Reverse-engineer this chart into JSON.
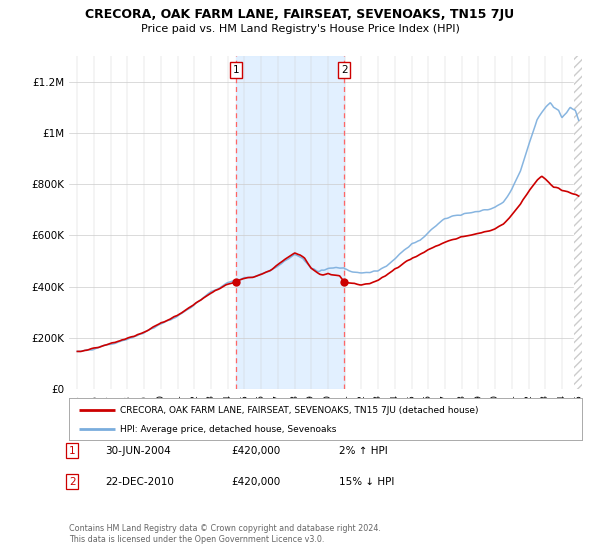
{
  "title": "CRECORA, OAK FARM LANE, FAIRSEAT, SEVENOAKS, TN15 7JU",
  "subtitle": "Price paid vs. HM Land Registry's House Price Index (HPI)",
  "ylabel_ticks": [
    "£0",
    "£200K",
    "£400K",
    "£600K",
    "£800K",
    "£1M",
    "£1.2M"
  ],
  "ytick_values": [
    0,
    200000,
    400000,
    600000,
    800000,
    1000000,
    1200000
  ],
  "ylim": [
    0,
    1300000
  ],
  "xlim_start": 1994.5,
  "xlim_end": 2025.2,
  "tx1_date": "30-JUN-2004",
  "tx1_price": "£420,000",
  "tx1_pct": "2% ↑ HPI",
  "tx2_date": "22-DEC-2010",
  "tx2_price": "£420,000",
  "tx2_pct": "15% ↓ HPI",
  "tx1_x": 2004.5,
  "tx2_x": 2010.97,
  "tx1_y": 420000,
  "tx2_y": 420000,
  "legend_line1": "CRECORA, OAK FARM LANE, FAIRSEAT, SEVENOAKS, TN15 7JU (detached house)",
  "legend_line2": "HPI: Average price, detached house, Sevenoaks",
  "footer1": "Contains HM Land Registry data © Crown copyright and database right 2024.",
  "footer2": "This data is licensed under the Open Government Licence v3.0.",
  "red_color": "#cc0000",
  "blue_color": "#7aaddd",
  "shade_color": "#ddeeff",
  "background_color": "#ffffff",
  "grid_color": "#cccccc",
  "hatch_color": "#cccccc"
}
